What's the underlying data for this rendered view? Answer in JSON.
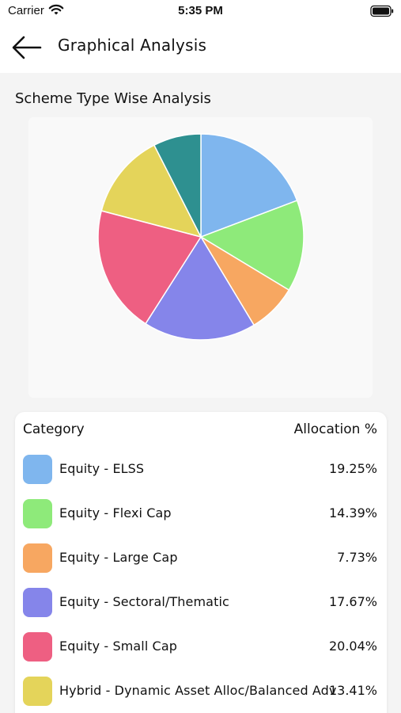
{
  "status": {
    "carrier": "Carrier",
    "time": "5:35 PM"
  },
  "header": {
    "title": "Graphical Analysis"
  },
  "section": {
    "title": "Scheme Type Wise Analysis"
  },
  "table": {
    "col_category": "Category",
    "col_allocation": "Allocation %"
  },
  "rows": [
    {
      "label": "Equity - ELSS",
      "pct": "19.25%",
      "color": "#7fb6ee"
    },
    {
      "label": "Equity - Flexi Cap",
      "pct": "14.39%",
      "color": "#8eea7a"
    },
    {
      "label": "Equity - Large Cap",
      "pct": "7.73%",
      "color": "#f7a761"
    },
    {
      "label": "Equity - Sectoral/Thematic",
      "pct": "17.67%",
      "color": "#8585ea"
    },
    {
      "label": "Equity - Small Cap",
      "pct": "20.04%",
      "color": "#ee5f82"
    },
    {
      "label": "Hybrid - Dynamic Asset Alloc/Balanced Adv",
      "pct": "13.41%",
      "color": "#e4d45a"
    }
  ],
  "chart_data": {
    "type": "pie",
    "title": "Scheme Type Wise Analysis",
    "categories": [
      "Equity - ELSS",
      "Equity - Flexi Cap",
      "Equity - Large Cap",
      "Equity - Sectoral/Thematic",
      "Equity - Small Cap",
      "Hybrid - Dynamic Asset Alloc/Balanced Adv",
      "Unlabeled (not visible)"
    ],
    "values": [
      19.25,
      14.39,
      7.73,
      17.67,
      20.04,
      13.41,
      7.51
    ],
    "colors": [
      "#7fb6ee",
      "#8eea7a",
      "#f7a761",
      "#8585ea",
      "#ee5f82",
      "#e4d45a",
      "#2e9090"
    ],
    "legend": "none"
  }
}
